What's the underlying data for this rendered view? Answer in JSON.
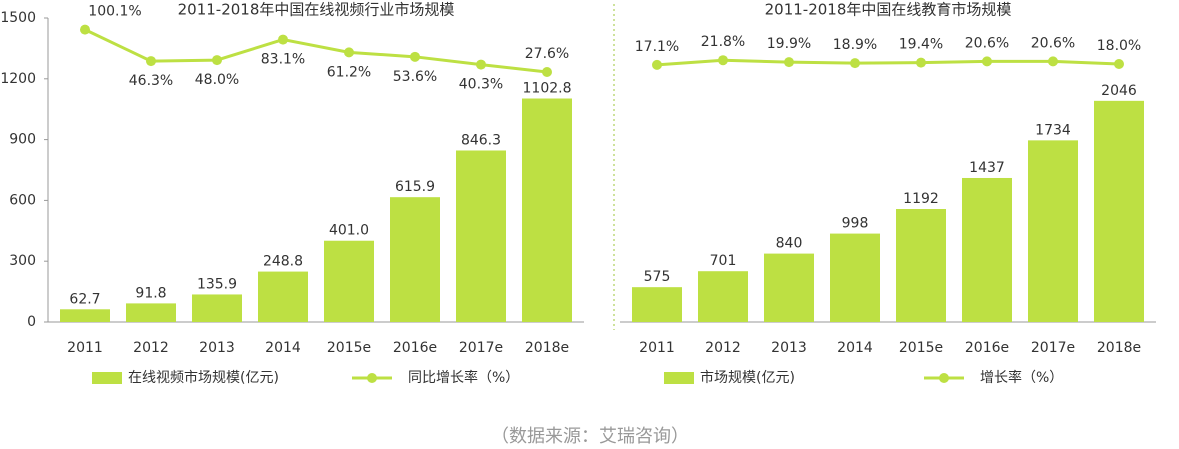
{
  "chart_data": [
    {
      "type": "bar-line",
      "title": "2011-2018年中国在线视频行业市场规模",
      "categories": [
        "2011",
        "2012",
        "2013",
        "2014",
        "2015e",
        "2016e",
        "2017e",
        "2018e"
      ],
      "series": [
        {
          "name": "在线视频市场规模(亿元)",
          "color": "#bde043",
          "values": [
            62.7,
            91.8,
            135.9,
            248.8,
            401.0,
            615.9,
            846.3,
            1102.8
          ],
          "value_labels": [
            "62.7",
            "91.8",
            "135.9",
            "248.8",
            "401.0",
            "615.9",
            "846.3",
            "1102.8"
          ]
        },
        {
          "name": "同比增长率（%）",
          "color": "#bde043",
          "axis": "y2",
          "values": [
            100.1,
            46.3,
            48.0,
            83.1,
            61.2,
            53.6,
            40.3,
            27.6
          ],
          "value_labels": [
            "100.1%",
            "46.3%",
            "48.0%",
            "83.1%",
            "61.2%",
            "53.6%",
            "40.3%",
            "27.6%"
          ]
        }
      ],
      "ylim": [
        0,
        1500
      ],
      "yticks": [
        0,
        300,
        600,
        900,
        1200,
        1500
      ],
      "y2lim": [
        -400,
        120
      ]
    },
    {
      "type": "bar-line",
      "title": "2011-2018年中国在线教育市场规模",
      "categories": [
        "2011",
        "2012",
        "2013",
        "2014",
        "2015e",
        "2016e",
        "2017e",
        "2018e"
      ],
      "series": [
        {
          "name": "市场规模(亿元)",
          "color": "#bde043",
          "values": [
            575,
            701,
            840,
            998,
            1192,
            1437,
            1734,
            2046
          ]
        },
        {
          "name": "增长率（%）",
          "color": "#bde043",
          "axis": "y2",
          "values": [
            17.1,
            21.8,
            19.9,
            18.9,
            19.4,
            20.6,
            20.6,
            18.0
          ],
          "value_labels": [
            "17.1%",
            "21.8%",
            "19.9%",
            "18.9%",
            "19.4%",
            "20.6%",
            "20.6%",
            "18.0%"
          ]
        }
      ],
      "ylim": [
        300,
        2700
      ],
      "y2lim": [
        -240,
        64
      ]
    }
  ],
  "source": "（数据来源：艾瑞咨询）"
}
